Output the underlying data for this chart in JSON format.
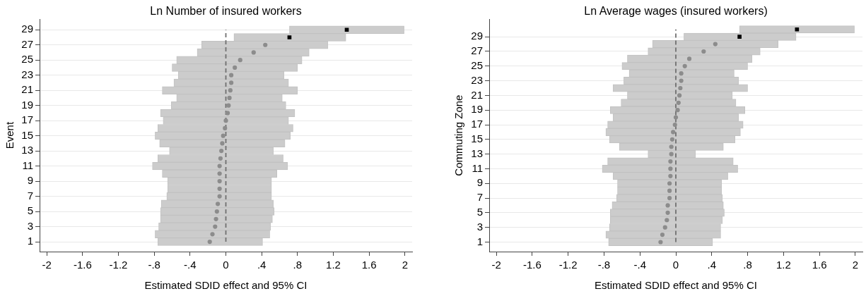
{
  "chart_data": [
    {
      "type": "bar",
      "orientation": "horizontal",
      "title": "Ln Number of insured workers",
      "xlabel": "Estimated SDID effect and 95% CI",
      "ylabel": "Event",
      "categories": [
        "29",
        null,
        "27",
        null,
        "25",
        null,
        "23",
        null,
        "21",
        null,
        "19",
        null,
        "17",
        null,
        "15",
        null,
        "13",
        null,
        "11",
        null,
        "9",
        null,
        "7",
        null,
        "5",
        null,
        "3",
        null,
        "1"
      ],
      "series": [
        {
          "type": "bar",
          "color": "#cccccc",
          "base": [
            0.71,
            0.09,
            -0.27,
            -0.32,
            -0.55,
            -0.6,
            -0.53,
            -0.58,
            -0.71,
            -0.55,
            -0.61,
            -0.73,
            -0.7,
            -0.76,
            -0.79,
            -0.74,
            -0.63,
            -0.76,
            -0.82,
            -0.71,
            -0.65,
            -0.65,
            -0.66,
            -0.72,
            -0.73,
            -0.73,
            -0.75,
            -0.79,
            -0.76
          ],
          "values": [
            1.28,
            1.25,
            1.41,
            1.25,
            1.4,
            1.4,
            1.18,
            1.28,
            1.51,
            1.18,
            1.28,
            1.5,
            1.4,
            1.51,
            1.51,
            1.4,
            1.16,
            1.4,
            1.51,
            1.28,
            1.16,
            1.16,
            1.17,
            1.25,
            1.27,
            1.25,
            1.25,
            1.28,
            1.17
          ]
        },
        {
          "type": "scatter",
          "marker": "circle",
          "color": "#8c8c8c",
          "values": [
            null,
            null,
            0.44,
            0.31,
            0.16,
            0.1,
            0.06,
            0.06,
            0.05,
            0.04,
            0.03,
            0.02,
            0.0,
            -0.01,
            -0.03,
            -0.04,
            -0.05,
            -0.06,
            -0.07,
            -0.07,
            -0.07,
            -0.07,
            -0.07,
            -0.09,
            -0.1,
            -0.11,
            -0.12,
            -0.15,
            -0.18
          ]
        },
        {
          "type": "scatter",
          "marker": "square",
          "color": "#000000",
          "values": [
            1.35,
            0.71,
            null,
            null,
            null,
            null,
            null,
            null,
            null,
            null,
            null,
            null,
            null,
            null,
            null,
            null,
            null,
            null,
            null,
            null,
            null,
            null,
            null,
            null,
            null,
            null,
            null,
            null,
            null
          ]
        }
      ],
      "xlim": [
        -2.08,
        2.08
      ],
      "xticks": [
        -2,
        -1.6,
        -1.2,
        {
          "value": -0.8,
          "label": "-.8"
        },
        {
          "value": -0.4,
          "label": "-.4"
        },
        0,
        {
          "value": 0.4,
          "label": ".4"
        },
        {
          "value": 0.8,
          "label": ".8"
        },
        1.2,
        1.6,
        2
      ],
      "ref_lines": [
        {
          "axis": "x",
          "value": 0,
          "color": "#707070",
          "line_style": "dashed"
        }
      ],
      "grid": "y"
    },
    {
      "type": "bar",
      "orientation": "horizontal",
      "title": "Ln Average wages (insured workers)",
      "xlabel": "Estimated SDID effect and 95% CI",
      "ylabel": "Commuting Zone",
      "categories": [
        null,
        "29",
        null,
        "27",
        null,
        "25",
        null,
        "23",
        null,
        "21",
        null,
        "19",
        null,
        "17",
        null,
        "15",
        null,
        "13",
        null,
        "11",
        null,
        "9",
        null,
        "7",
        null,
        "5",
        null,
        "3",
        null,
        "1"
      ],
      "series": [
        {
          "type": "bar",
          "color": "#cccccc",
          "base": [
            0.71,
            0.09,
            -0.26,
            -0.31,
            -0.54,
            -0.6,
            -0.52,
            -0.58,
            -0.7,
            -0.54,
            -0.61,
            -0.73,
            -0.7,
            -0.76,
            -0.78,
            -0.74,
            -0.63,
            -0.31,
            -0.76,
            -0.82,
            -0.7,
            -0.65,
            -0.65,
            -0.66,
            -0.71,
            -0.73,
            -0.73,
            -0.74,
            -0.78,
            -0.75
          ],
          "values": [
            1.28,
            1.25,
            1.4,
            1.25,
            1.39,
            1.4,
            1.17,
            1.28,
            1.5,
            1.17,
            1.28,
            1.5,
            1.4,
            1.51,
            1.5,
            1.4,
            1.16,
            0.53,
            1.4,
            1.51,
            1.28,
            1.16,
            1.16,
            1.18,
            1.24,
            1.27,
            1.25,
            1.24,
            1.28,
            1.16
          ]
        },
        {
          "type": "scatter",
          "marker": "circle",
          "color": "#8c8c8c",
          "values": [
            null,
            null,
            0.44,
            0.31,
            0.15,
            0.1,
            0.06,
            0.06,
            0.05,
            0.04,
            0.03,
            0.02,
            0.0,
            -0.01,
            -0.03,
            -0.04,
            -0.05,
            -0.05,
            -0.06,
            -0.06,
            -0.06,
            -0.07,
            -0.07,
            -0.07,
            -0.09,
            -0.09,
            -0.1,
            -0.12,
            -0.15,
            -0.17
          ]
        },
        {
          "type": "scatter",
          "marker": "square",
          "color": "#000000",
          "values": [
            1.35,
            0.71,
            null,
            null,
            null,
            null,
            null,
            null,
            null,
            null,
            null,
            null,
            null,
            null,
            null,
            null,
            null,
            null,
            null,
            null,
            null,
            null,
            null,
            null,
            null,
            null,
            null,
            null,
            null,
            null
          ]
        }
      ],
      "xlim": [
        -2.08,
        2.08
      ],
      "xticks": [
        -2,
        -1.6,
        -1.2,
        {
          "value": -0.8,
          "label": "-.8"
        },
        {
          "value": -0.4,
          "label": "-.4"
        },
        0,
        {
          "value": 0.4,
          "label": ".4"
        },
        {
          "value": 0.8,
          "label": ".8"
        },
        1.2,
        1.6,
        2
      ],
      "ref_lines": [
        {
          "axis": "x",
          "value": 0,
          "color": "#707070",
          "line_style": "dashed"
        }
      ],
      "grid": "y"
    }
  ]
}
